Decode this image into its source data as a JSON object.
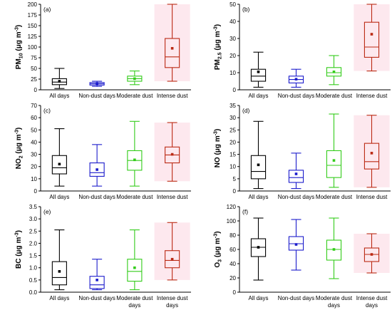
{
  "chart_data": [
    {
      "type": "box",
      "panel_label": "(a)",
      "ylabel": {
        "base": "PM",
        "sub": "10",
        "unit_pre": " (μg m",
        "unit_sup": "-3",
        "unit_post": ")"
      },
      "ylim": [
        0,
        200
      ],
      "yticks": [
        0,
        25,
        50,
        75,
        100,
        125,
        150,
        175,
        200
      ],
      "categories": [
        [
          "All days"
        ],
        [
          "Non-dust days"
        ],
        [
          "Moderate dust"
        ],
        [
          "Intense dust"
        ]
      ],
      "boxes": [
        {
          "min": 3,
          "q1": 12,
          "median": 18,
          "q3": 26,
          "max": 50,
          "mean": 20
        },
        {
          "min": 8,
          "q1": 11,
          "median": 14,
          "q3": 17,
          "max": 20,
          "mean": 14
        },
        {
          "min": 12,
          "q1": 20,
          "median": 26,
          "q3": 32,
          "max": 44,
          "mean": 26
        },
        {
          "min": 20,
          "q1": 52,
          "median": 77,
          "q3": 120,
          "max": 200,
          "mean": 97
        }
      ]
    },
    {
      "type": "box",
      "panel_label": "(b)",
      "ylabel": {
        "base": "PM",
        "sub": "2.5",
        "unit_pre": " (μg m",
        "unit_sup": "-3",
        "unit_post": ")"
      },
      "ylim": [
        0,
        50
      ],
      "yticks": [
        0,
        10,
        20,
        30,
        40,
        50
      ],
      "categories": [
        [
          "All days"
        ],
        [
          "Non-dust days"
        ],
        [
          "Moderate dust"
        ],
        [
          "Intense dust"
        ]
      ],
      "boxes": [
        {
          "min": 1.5,
          "q1": 5,
          "median": 8,
          "q3": 12,
          "max": 22,
          "mean": 10.5
        },
        {
          "min": 1.5,
          "q1": 4,
          "median": 6,
          "q3": 8,
          "max": 12,
          "mean": 6.2
        },
        {
          "min": 3,
          "q1": 8,
          "median": 10,
          "q3": 13,
          "max": 20,
          "mean": 10.5
        },
        {
          "min": 11,
          "q1": 19,
          "median": 25,
          "q3": 39.5,
          "max": 50,
          "mean": 32.5
        }
      ]
    },
    {
      "type": "box",
      "panel_label": "(c)",
      "ylabel": {
        "base": "NO",
        "sub": "2",
        "unit_pre": " (μg m",
        "unit_sup": "-3",
        "unit_post": ")"
      },
      "ylim": [
        0,
        70
      ],
      "yticks": [
        0,
        10,
        20,
        30,
        40,
        50,
        60,
        70
      ],
      "categories": [
        [
          "All days"
        ],
        [
          "Non-dust days"
        ],
        [
          "Moderate dust"
        ],
        [
          "Intense dust"
        ]
      ],
      "boxes": [
        {
          "min": 4,
          "q1": 14,
          "median": 19,
          "q3": 29,
          "max": 51,
          "mean": 22
        },
        {
          "min": 4,
          "q1": 12,
          "median": 15,
          "q3": 23,
          "max": 38,
          "mean": 17.5
        },
        {
          "min": 4,
          "q1": 17,
          "median": 25,
          "q3": 33,
          "max": 57,
          "mean": 25.5
        },
        {
          "min": 8,
          "q1": 23,
          "median": 29.5,
          "q3": 36,
          "max": 56,
          "mean": 30
        }
      ]
    },
    {
      "type": "box",
      "panel_label": "(d)",
      "ylabel": {
        "base": "NO",
        "sub": "",
        "unit_pre": " (μg m",
        "unit_sup": "-3",
        "unit_post": ")"
      },
      "ylim": [
        0,
        35
      ],
      "yticks": [
        0,
        5,
        10,
        15,
        20,
        25,
        30,
        35
      ],
      "categories": [
        [
          "All days"
        ],
        [
          "Non-dust days"
        ],
        [
          "Moderate dust"
        ],
        [
          "Intense dust"
        ]
      ],
      "boxes": [
        {
          "min": 1,
          "q1": 5,
          "median": 8,
          "q3": 14.5,
          "max": 28.5,
          "mean": 10.7
        },
        {
          "min": 1,
          "q1": 3.5,
          "median": 5.5,
          "q3": 8.5,
          "max": 15.5,
          "mean": 7
        },
        {
          "min": 1.5,
          "q1": 5.5,
          "median": 10.5,
          "q3": 16.5,
          "max": 31.5,
          "mean": 12.5
        },
        {
          "min": 1.5,
          "q1": 9,
          "median": 12,
          "q3": 19.5,
          "max": 31,
          "mean": 15.5
        }
      ]
    },
    {
      "type": "box",
      "panel_label": "(e)",
      "ylabel": {
        "base": "BC",
        "sub": "",
        "unit_pre": " (μg m",
        "unit_sup": "-3",
        "unit_post": ")"
      },
      "ylim": [
        0,
        3.5
      ],
      "yticks": [
        0.0,
        0.5,
        1.0,
        1.5,
        2.0,
        2.5,
        3.0,
        3.5
      ],
      "categories": [
        [
          "All days"
        ],
        [
          "Non-dust days"
        ],
        [
          "Moderate dust",
          "days"
        ],
        [
          "Intense dust",
          "days"
        ]
      ],
      "boxes": [
        {
          "min": 0.1,
          "q1": 0.3,
          "median": 0.6,
          "q3": 1.25,
          "max": 2.55,
          "mean": 0.85
        },
        {
          "min": 0.1,
          "q1": 0.15,
          "median": 0.3,
          "q3": 0.65,
          "max": 1.35,
          "mean": 0.5
        },
        {
          "min": 0.1,
          "q1": 0.45,
          "median": 0.85,
          "q3": 1.35,
          "max": 2.55,
          "mean": 1.0
        },
        {
          "min": 0.5,
          "q1": 1.0,
          "median": 1.3,
          "q3": 1.7,
          "max": 2.85,
          "mean": 1.35
        }
      ]
    },
    {
      "type": "box",
      "panel_label": "(f)",
      "ylabel": {
        "base": "O",
        "sub": "3",
        "unit_pre": " (μg m",
        "unit_sup": "-3",
        "unit_post": ")"
      },
      "ylim": [
        0,
        120
      ],
      "yticks": [
        0,
        20,
        40,
        60,
        80,
        100,
        120
      ],
      "categories": [
        [
          "All days"
        ],
        [
          "Non-dust days"
        ],
        [
          "Moderate dust",
          "days"
        ],
        [
          "Intense dust",
          "days"
        ]
      ],
      "boxes": [
        {
          "min": 17,
          "q1": 50,
          "median": 63,
          "q3": 75,
          "max": 104,
          "mean": 63
        },
        {
          "min": 31,
          "q1": 59,
          "median": 68,
          "q3": 78,
          "max": 102,
          "mean": 67
        },
        {
          "min": 19,
          "q1": 45,
          "median": 60,
          "q3": 73,
          "max": 104,
          "mean": 60
        },
        {
          "min": 27,
          "q1": 43,
          "median": 53,
          "q3": 62,
          "max": 82,
          "mean": 53
        }
      ]
    }
  ],
  "series_colors": [
    "#000000",
    "#1c1ccc",
    "#33cc1a",
    "#bb2a14"
  ],
  "intense_shade_color": "#fde8ee"
}
